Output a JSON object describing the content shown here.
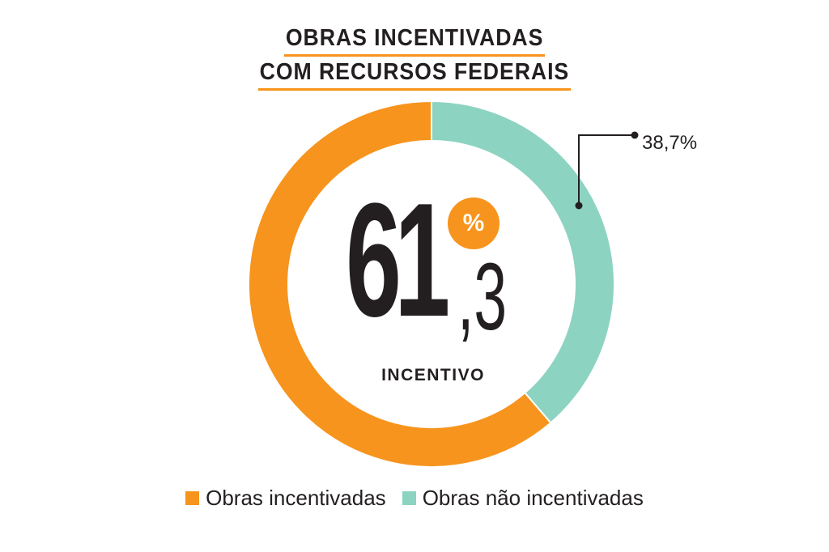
{
  "title": {
    "line1": "OBRAS INCENTIVADAS",
    "line2": "COM RECURSOS FEDERAIS"
  },
  "colors": {
    "incentivized": "#f7941d",
    "not_incentivized": "#8dd3c1",
    "text": "#231f20"
  },
  "center": {
    "integer_part": "61",
    "decimal_part": ",3",
    "percent_sign": "%",
    "label": "INCENTIVO"
  },
  "callout": {
    "label": "38,7%"
  },
  "chart_data": {
    "type": "pie",
    "style": "donut",
    "categories": [
      "Obras incentivadas",
      "Obras não incentivadas"
    ],
    "values": [
      61.3,
      38.7
    ],
    "title": "OBRAS INCENTIVADAS COM RECURSOS FEDERAIS",
    "legend_position": "bottom"
  },
  "legend": [
    {
      "label": "Obras incentivadas",
      "color": "#f7941d"
    },
    {
      "label": "Obras não incentivadas",
      "color": "#8dd3c1"
    }
  ]
}
